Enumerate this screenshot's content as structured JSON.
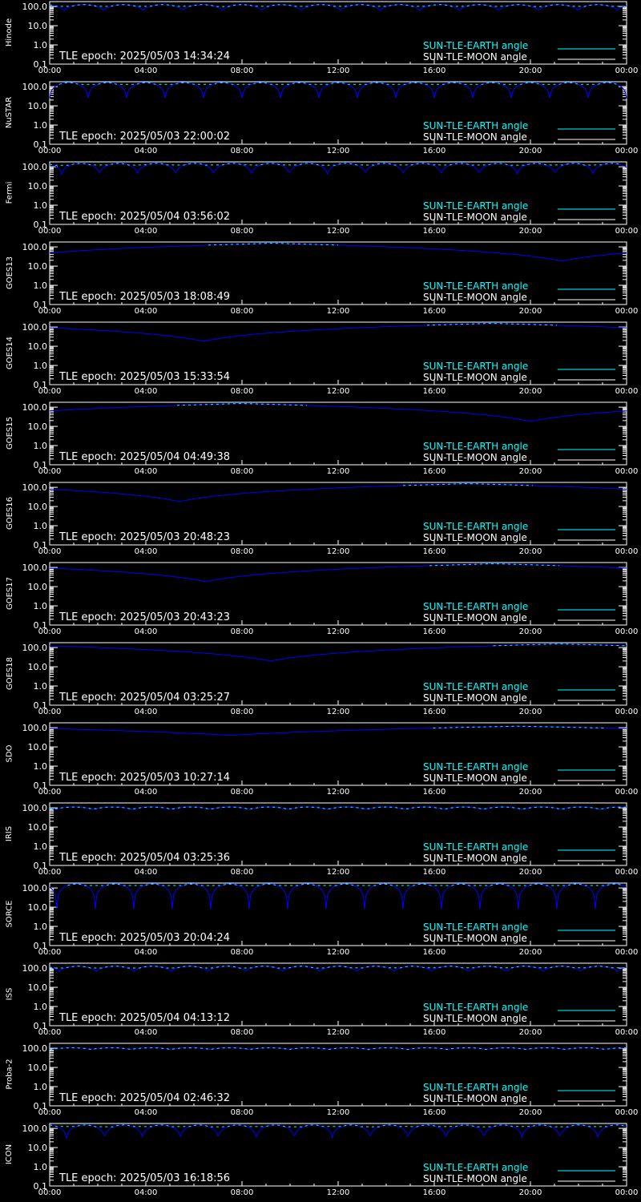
{
  "colors": {
    "sun_tle_earth": "#00ffff",
    "sun_tle_moon": "#ffffff",
    "blue_curve": "#0000ff",
    "axes": "#ffffff",
    "background": "#000000"
  },
  "legend": {
    "earth": "SUN-TLE-EARTH angle",
    "moon": "SUN-TLE-MOON angle"
  },
  "chart_data": {
    "type": "line",
    "y_scale": "log",
    "ylim": [
      0.1,
      180
    ],
    "xlim_hours": [
      0,
      24
    ],
    "x_tick_labels": [
      "00:00",
      "04:00",
      "08:00",
      "12:00",
      "16:00",
      "20:00",
      "00:00"
    ],
    "y_tick_labels": [
      "100.0",
      "10.0",
      "1.0",
      "0.1"
    ],
    "legend_placement": "bottom-right",
    "panels": [
      {
        "satellite": "Hinode",
        "epoch": "TLE epoch: 2025/05/03 14:34:24",
        "profile": "orbital",
        "orbits": 14.6,
        "min_deg": 60,
        "max_deg": 125,
        "phase_h": 0.6
      },
      {
        "satellite": "NuSTAR",
        "epoch": "TLE epoch: 2025/05/03 22:00:02",
        "profile": "orbital",
        "orbits": 15.0,
        "min_deg": 25,
        "max_deg": 160,
        "phase_h": 0.0
      },
      {
        "satellite": "Fermi",
        "epoch": "TLE epoch: 2025/05/04 03:56:02",
        "profile": "orbital",
        "orbits": 15.2,
        "min_deg": 40,
        "max_deg": 150,
        "phase_h": 0.5
      },
      {
        "satellite": "GOES13",
        "epoch": "TLE epoch: 2025/05/03 18:08:49",
        "profile": "geo",
        "min_deg": 18,
        "min_h": 21.3,
        "max_deg": 155
      },
      {
        "satellite": "GOES14",
        "epoch": "TLE epoch: 2025/05/03 15:33:54",
        "profile": "geo",
        "min_deg": 18,
        "min_h": 6.4,
        "max_deg": 155
      },
      {
        "satellite": "GOES15",
        "epoch": "TLE epoch: 2025/05/04 04:49:38",
        "profile": "geo",
        "min_deg": 18,
        "min_h": 20.0,
        "max_deg": 155
      },
      {
        "satellite": "GOES16",
        "epoch": "TLE epoch: 2025/05/03 20:48:23",
        "profile": "geo",
        "min_deg": 18,
        "min_h": 5.4,
        "max_deg": 155
      },
      {
        "satellite": "GOES17",
        "epoch": "TLE epoch: 2025/05/03 20:43:23",
        "profile": "geo",
        "min_deg": 18,
        "min_h": 6.5,
        "max_deg": 155
      },
      {
        "satellite": "GOES18",
        "epoch": "TLE epoch: 2025/05/04 03:25:27",
        "profile": "geo",
        "min_deg": 20,
        "min_h": 9.2,
        "max_deg": 155
      },
      {
        "satellite": "SDO",
        "epoch": "TLE epoch: 2025/05/03 10:27:14",
        "profile": "geo",
        "min_deg": 40,
        "min_h": 7.5,
        "max_deg": 120
      },
      {
        "satellite": "IRIS",
        "epoch": "TLE epoch: 2025/05/04 03:25:36",
        "profile": "orbital",
        "orbits": 14.8,
        "min_deg": 80,
        "max_deg": 110,
        "phase_h": 0.2
      },
      {
        "satellite": "SORCE",
        "epoch": "TLE epoch: 2025/05/03 20:04:24",
        "profile": "orbital",
        "orbits": 15.0,
        "min_deg": 8,
        "max_deg": 160,
        "phase_h": 0.3
      },
      {
        "satellite": "ISS",
        "epoch": "TLE epoch: 2025/05/04 04:13:12",
        "profile": "orbital",
        "orbits": 15.5,
        "min_deg": 65,
        "max_deg": 125,
        "phase_h": 0.4
      },
      {
        "satellite": "Proba-2",
        "epoch": "TLE epoch: 2025/05/04 02:46:32",
        "profile": "orbital",
        "orbits": 14.6,
        "min_deg": 85,
        "max_deg": 105,
        "phase_h": 0.1
      },
      {
        "satellite": "ICON",
        "epoch": "TLE epoch: 2025/05/03 16:18:56",
        "profile": "orbital",
        "orbits": 15.2,
        "min_deg": 30,
        "max_deg": 150,
        "phase_h": 0.7
      }
    ]
  }
}
